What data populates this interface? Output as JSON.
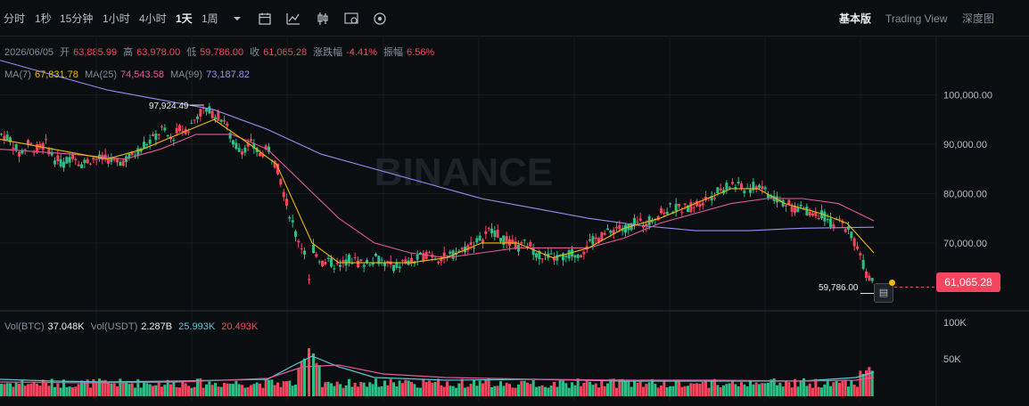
{
  "toolbar": {
    "intervals": [
      "分时",
      "1秒",
      "15分钟",
      "1小时",
      "4小时",
      "1天",
      "1周"
    ],
    "active_interval": "1天",
    "views": [
      "基本版",
      "Trading View",
      "深度图"
    ],
    "active_view": "基本版"
  },
  "info": {
    "date": "2026/06/05",
    "open_label": "开",
    "open": "63,885.99",
    "high_label": "高",
    "high": "63,978.00",
    "low_label": "低",
    "low": "59,786.00",
    "close_label": "收",
    "close": "61,065.28",
    "change_label": "涨跌幅",
    "change": "-4.41%",
    "amplitude_label": "振幅",
    "amplitude": "6.56%",
    "ma7_label": "MA(7)",
    "ma7": "67,831.78",
    "ma25_label": "MA(25)",
    "ma25": "74,543.58",
    "ma99_label": "MA(99)",
    "ma99": "73,187.82",
    "vol_btc_label": "Vol(BTC)",
    "vol_btc": "37.048K",
    "vol_usdt_label": "Vol(USDT)",
    "vol_usdt": "2.287B",
    "vol_ma1": "25.993K",
    "vol_ma2": "20.493K"
  },
  "watermark": "BINANCE",
  "markers": {
    "high_marker": "97,924.49",
    "low_marker": "59,786.00",
    "current_price": "61,065.28"
  },
  "colors": {
    "up": "#2ebd85",
    "down": "#f6465d",
    "ma7": "#f0b90b",
    "ma25": "#e05a9a",
    "ma99": "#9c8cf5",
    "vol_ma1": "#5ec4d3",
    "vol_ma2": "#e05a9a"
  },
  "chart_data": {
    "type": "candlestick",
    "price_axis": {
      "ticks": [
        100000,
        90000,
        80000,
        70000
      ],
      "tick_labels": [
        "100,000.00",
        "90,000.00",
        "80,000.00",
        "70,000.00"
      ],
      "range": [
        57000,
        112000
      ]
    },
    "volume_axis": {
      "ticks": [
        100000,
        50000
      ],
      "tick_labels": [
        "100K",
        "50K"
      ],
      "range": [
        0,
        110000
      ]
    },
    "close_points": [
      [
        0,
        92
      ],
      [
        10,
        91
      ],
      [
        20,
        88
      ],
      [
        30,
        90
      ],
      [
        40,
        89
      ],
      [
        50,
        90
      ],
      [
        60,
        87
      ],
      [
        70,
        86
      ],
      [
        80,
        88
      ],
      [
        90,
        86
      ],
      [
        100,
        87
      ],
      [
        110,
        87
      ],
      [
        120,
        87
      ],
      [
        130,
        86
      ],
      [
        140,
        87
      ],
      [
        150,
        88
      ],
      [
        160,
        90
      ],
      [
        170,
        91
      ],
      [
        180,
        93
      ],
      [
        190,
        91
      ],
      [
        200,
        93
      ],
      [
        210,
        93
      ],
      [
        220,
        96
      ],
      [
        230,
        97
      ],
      [
        240,
        96
      ],
      [
        250,
        95
      ],
      [
        260,
        90
      ],
      [
        270,
        89
      ],
      [
        280,
        90
      ],
      [
        290,
        88
      ],
      [
        300,
        89
      ],
      [
        310,
        85
      ],
      [
        320,
        78
      ],
      [
        330,
        72
      ],
      [
        340,
        68
      ],
      [
        345,
        62
      ],
      [
        350,
        69
      ],
      [
        360,
        66
      ],
      [
        370,
        66
      ],
      [
        380,
        65
      ],
      [
        390,
        67
      ],
      [
        400,
        66
      ],
      [
        410,
        66
      ],
      [
        420,
        67
      ],
      [
        430,
        66
      ],
      [
        440,
        65
      ],
      [
        450,
        66
      ],
      [
        460,
        66
      ],
      [
        470,
        67
      ],
      [
        480,
        68
      ],
      [
        490,
        67
      ],
      [
        500,
        67
      ],
      [
        510,
        68
      ],
      [
        520,
        69
      ],
      [
        530,
        70
      ],
      [
        540,
        71
      ],
      [
        550,
        73
      ],
      [
        560,
        71
      ],
      [
        570,
        70
      ],
      [
        580,
        69
      ],
      [
        590,
        70
      ],
      [
        600,
        68
      ],
      [
        610,
        67
      ],
      [
        620,
        67
      ],
      [
        630,
        67
      ],
      [
        640,
        68
      ],
      [
        650,
        68
      ],
      [
        660,
        70
      ],
      [
        670,
        71
      ],
      [
        680,
        72
      ],
      [
        690,
        73
      ],
      [
        700,
        73
      ],
      [
        710,
        74
      ],
      [
        720,
        74
      ],
      [
        730,
        75
      ],
      [
        740,
        76
      ],
      [
        750,
        77
      ],
      [
        760,
        77
      ],
      [
        770,
        77
      ],
      [
        780,
        78
      ],
      [
        790,
        79
      ],
      [
        800,
        80
      ],
      [
        810,
        81
      ],
      [
        820,
        82
      ],
      [
        830,
        81
      ],
      [
        840,
        81
      ],
      [
        850,
        82
      ],
      [
        860,
        80
      ],
      [
        870,
        79
      ],
      [
        880,
        78
      ],
      [
        890,
        77
      ],
      [
        900,
        77
      ],
      [
        910,
        76
      ],
      [
        920,
        76
      ],
      [
        930,
        74
      ],
      [
        940,
        74
      ],
      [
        950,
        73
      ],
      [
        960,
        69
      ],
      [
        970,
        64
      ],
      [
        980,
        61
      ]
    ],
    "ma7_points": [
      [
        0,
        91
      ],
      [
        60,
        89
      ],
      [
        120,
        87
      ],
      [
        160,
        89
      ],
      [
        200,
        92
      ],
      [
        240,
        95
      ],
      [
        280,
        90
      ],
      [
        310,
        86
      ],
      [
        330,
        78
      ],
      [
        350,
        70
      ],
      [
        380,
        66
      ],
      [
        420,
        66
      ],
      [
        460,
        66
      ],
      [
        500,
        67
      ],
      [
        540,
        70
      ],
      [
        580,
        70
      ],
      [
        620,
        67
      ],
      [
        660,
        69
      ],
      [
        700,
        73
      ],
      [
        740,
        75
      ],
      [
        780,
        78
      ],
      [
        820,
        81
      ],
      [
        850,
        81
      ],
      [
        880,
        78
      ],
      [
        920,
        76
      ],
      [
        950,
        74
      ],
      [
        980,
        68
      ]
    ],
    "ma25_points": [
      [
        0,
        89
      ],
      [
        80,
        88
      ],
      [
        140,
        87
      ],
      [
        180,
        89
      ],
      [
        220,
        92
      ],
      [
        260,
        92
      ],
      [
        300,
        89
      ],
      [
        340,
        82
      ],
      [
        380,
        75
      ],
      [
        420,
        70
      ],
      [
        460,
        68
      ],
      [
        500,
        67
      ],
      [
        540,
        68
      ],
      [
        580,
        69
      ],
      [
        620,
        69
      ],
      [
        660,
        69
      ],
      [
        700,
        71
      ],
      [
        740,
        74
      ],
      [
        780,
        76
      ],
      [
        820,
        78
      ],
      [
        860,
        79
      ],
      [
        900,
        79
      ],
      [
        940,
        78
      ],
      [
        980,
        74.5
      ]
    ],
    "ma99_points": [
      [
        0,
        107
      ],
      [
        60,
        104
      ],
      [
        120,
        101
      ],
      [
        180,
        99
      ],
      [
        240,
        97
      ],
      [
        300,
        93
      ],
      [
        360,
        88
      ],
      [
        420,
        85
      ],
      [
        480,
        82
      ],
      [
        540,
        79
      ],
      [
        600,
        77
      ],
      [
        660,
        75
      ],
      [
        720,
        73.5
      ],
      [
        780,
        72.5
      ],
      [
        840,
        72.5
      ],
      [
        900,
        73
      ],
      [
        980,
        73.2
      ]
    ]
  }
}
